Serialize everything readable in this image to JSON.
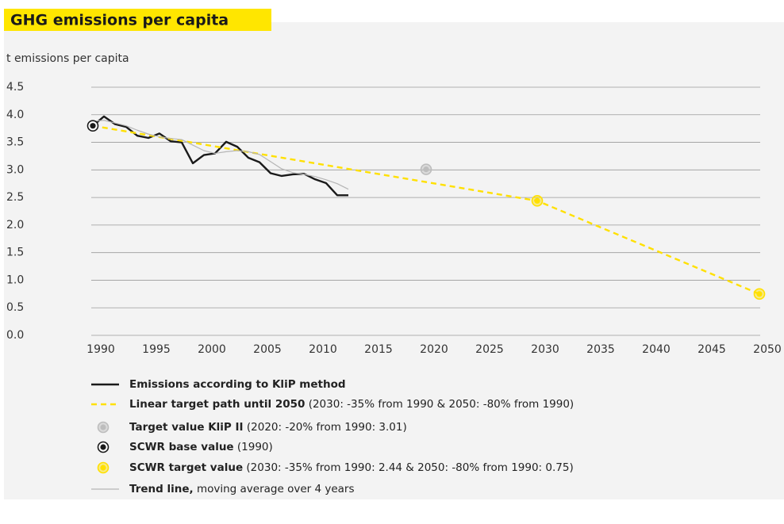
{
  "chart_data": {
    "type": "line",
    "title": "GHG emissions per capita",
    "y_label": "t emissions per capita",
    "xlim": [
      1990,
      2050
    ],
    "ylim": [
      0,
      4.5
    ],
    "xticks": [
      1990,
      1995,
      2000,
      2005,
      2010,
      2015,
      2020,
      2025,
      2030,
      2035,
      2040,
      2045,
      2050
    ],
    "yticks": [
      {
        "value": 0,
        "label": "0.0"
      },
      0.5,
      {
        "value": 1,
        "label": "1.0"
      },
      1.5,
      {
        "value": 2,
        "label": "2.0"
      },
      2.5,
      {
        "value": 3,
        "label": "3.0"
      },
      3.5,
      {
        "value": 4,
        "label": "4.0"
      },
      4.5
    ],
    "grid": true,
    "series": [
      {
        "name": "Emissions according to KliP method",
        "style": "line",
        "color": "#1a1a1a",
        "x": [
          1990,
          1991,
          1992,
          1993,
          1994,
          1995,
          1996,
          1997,
          1998,
          1999,
          2000,
          2001,
          2002,
          2003,
          2004,
          2005,
          2006,
          2007,
          2008,
          2009,
          2010,
          2011,
          2012,
          2013
        ],
        "values": [
          3.8,
          3.97,
          3.83,
          3.78,
          3.62,
          3.58,
          3.66,
          3.52,
          3.5,
          3.12,
          3.27,
          3.3,
          3.51,
          3.42,
          3.22,
          3.14,
          2.94,
          2.89,
          2.92,
          2.93,
          2.83,
          2.76,
          2.54,
          2.54
        ]
      },
      {
        "name": "Linear target path until 2050",
        "note": " (2030: -35% from 1990 & 2050: -80% from 1990)",
        "style": "dashed",
        "color": "#ffe000",
        "x": [
          1990,
          2030,
          2050
        ],
        "values": [
          3.8,
          2.44,
          0.75
        ]
      },
      {
        "name": "Target value KliP II",
        "note": " (2020: -20% from 1990: 3.01)",
        "style": "marker",
        "color": "#bdbdbd",
        "x": [
          2020
        ],
        "values": [
          3.01
        ]
      },
      {
        "name": "SCWR base value",
        "note": " (1990)",
        "style": "marker",
        "color": "#1a1a1a",
        "x": [
          1990
        ],
        "values": [
          3.8
        ]
      },
      {
        "name": "SCWR target value",
        "note": " (2030: -35% from 1990: 2.44 & 2050: -80% from 1990: 0.75)",
        "style": "marker",
        "color": "#ffe000",
        "x": [
          2030,
          2050
        ],
        "values": [
          2.44,
          0.75
        ]
      },
      {
        "name": "Trend line,",
        "note": " moving average over 4 years",
        "style": "thin",
        "color": "#b5b5b5",
        "x": [
          1990,
          1991,
          1992,
          1993,
          1994,
          1995,
          1996,
          1997,
          1998,
          1999,
          2000,
          2001,
          2002,
          2003,
          2004,
          2005,
          2006,
          2007,
          2008,
          2009,
          2010,
          2011,
          2012,
          2013
        ],
        "values": [
          3.88,
          3.9,
          3.85,
          3.8,
          3.72,
          3.65,
          3.6,
          3.57,
          3.55,
          3.45,
          3.35,
          3.3,
          3.33,
          3.35,
          3.33,
          3.28,
          3.15,
          3.02,
          2.95,
          2.92,
          2.88,
          2.82,
          2.75,
          2.65
        ]
      }
    ]
  }
}
